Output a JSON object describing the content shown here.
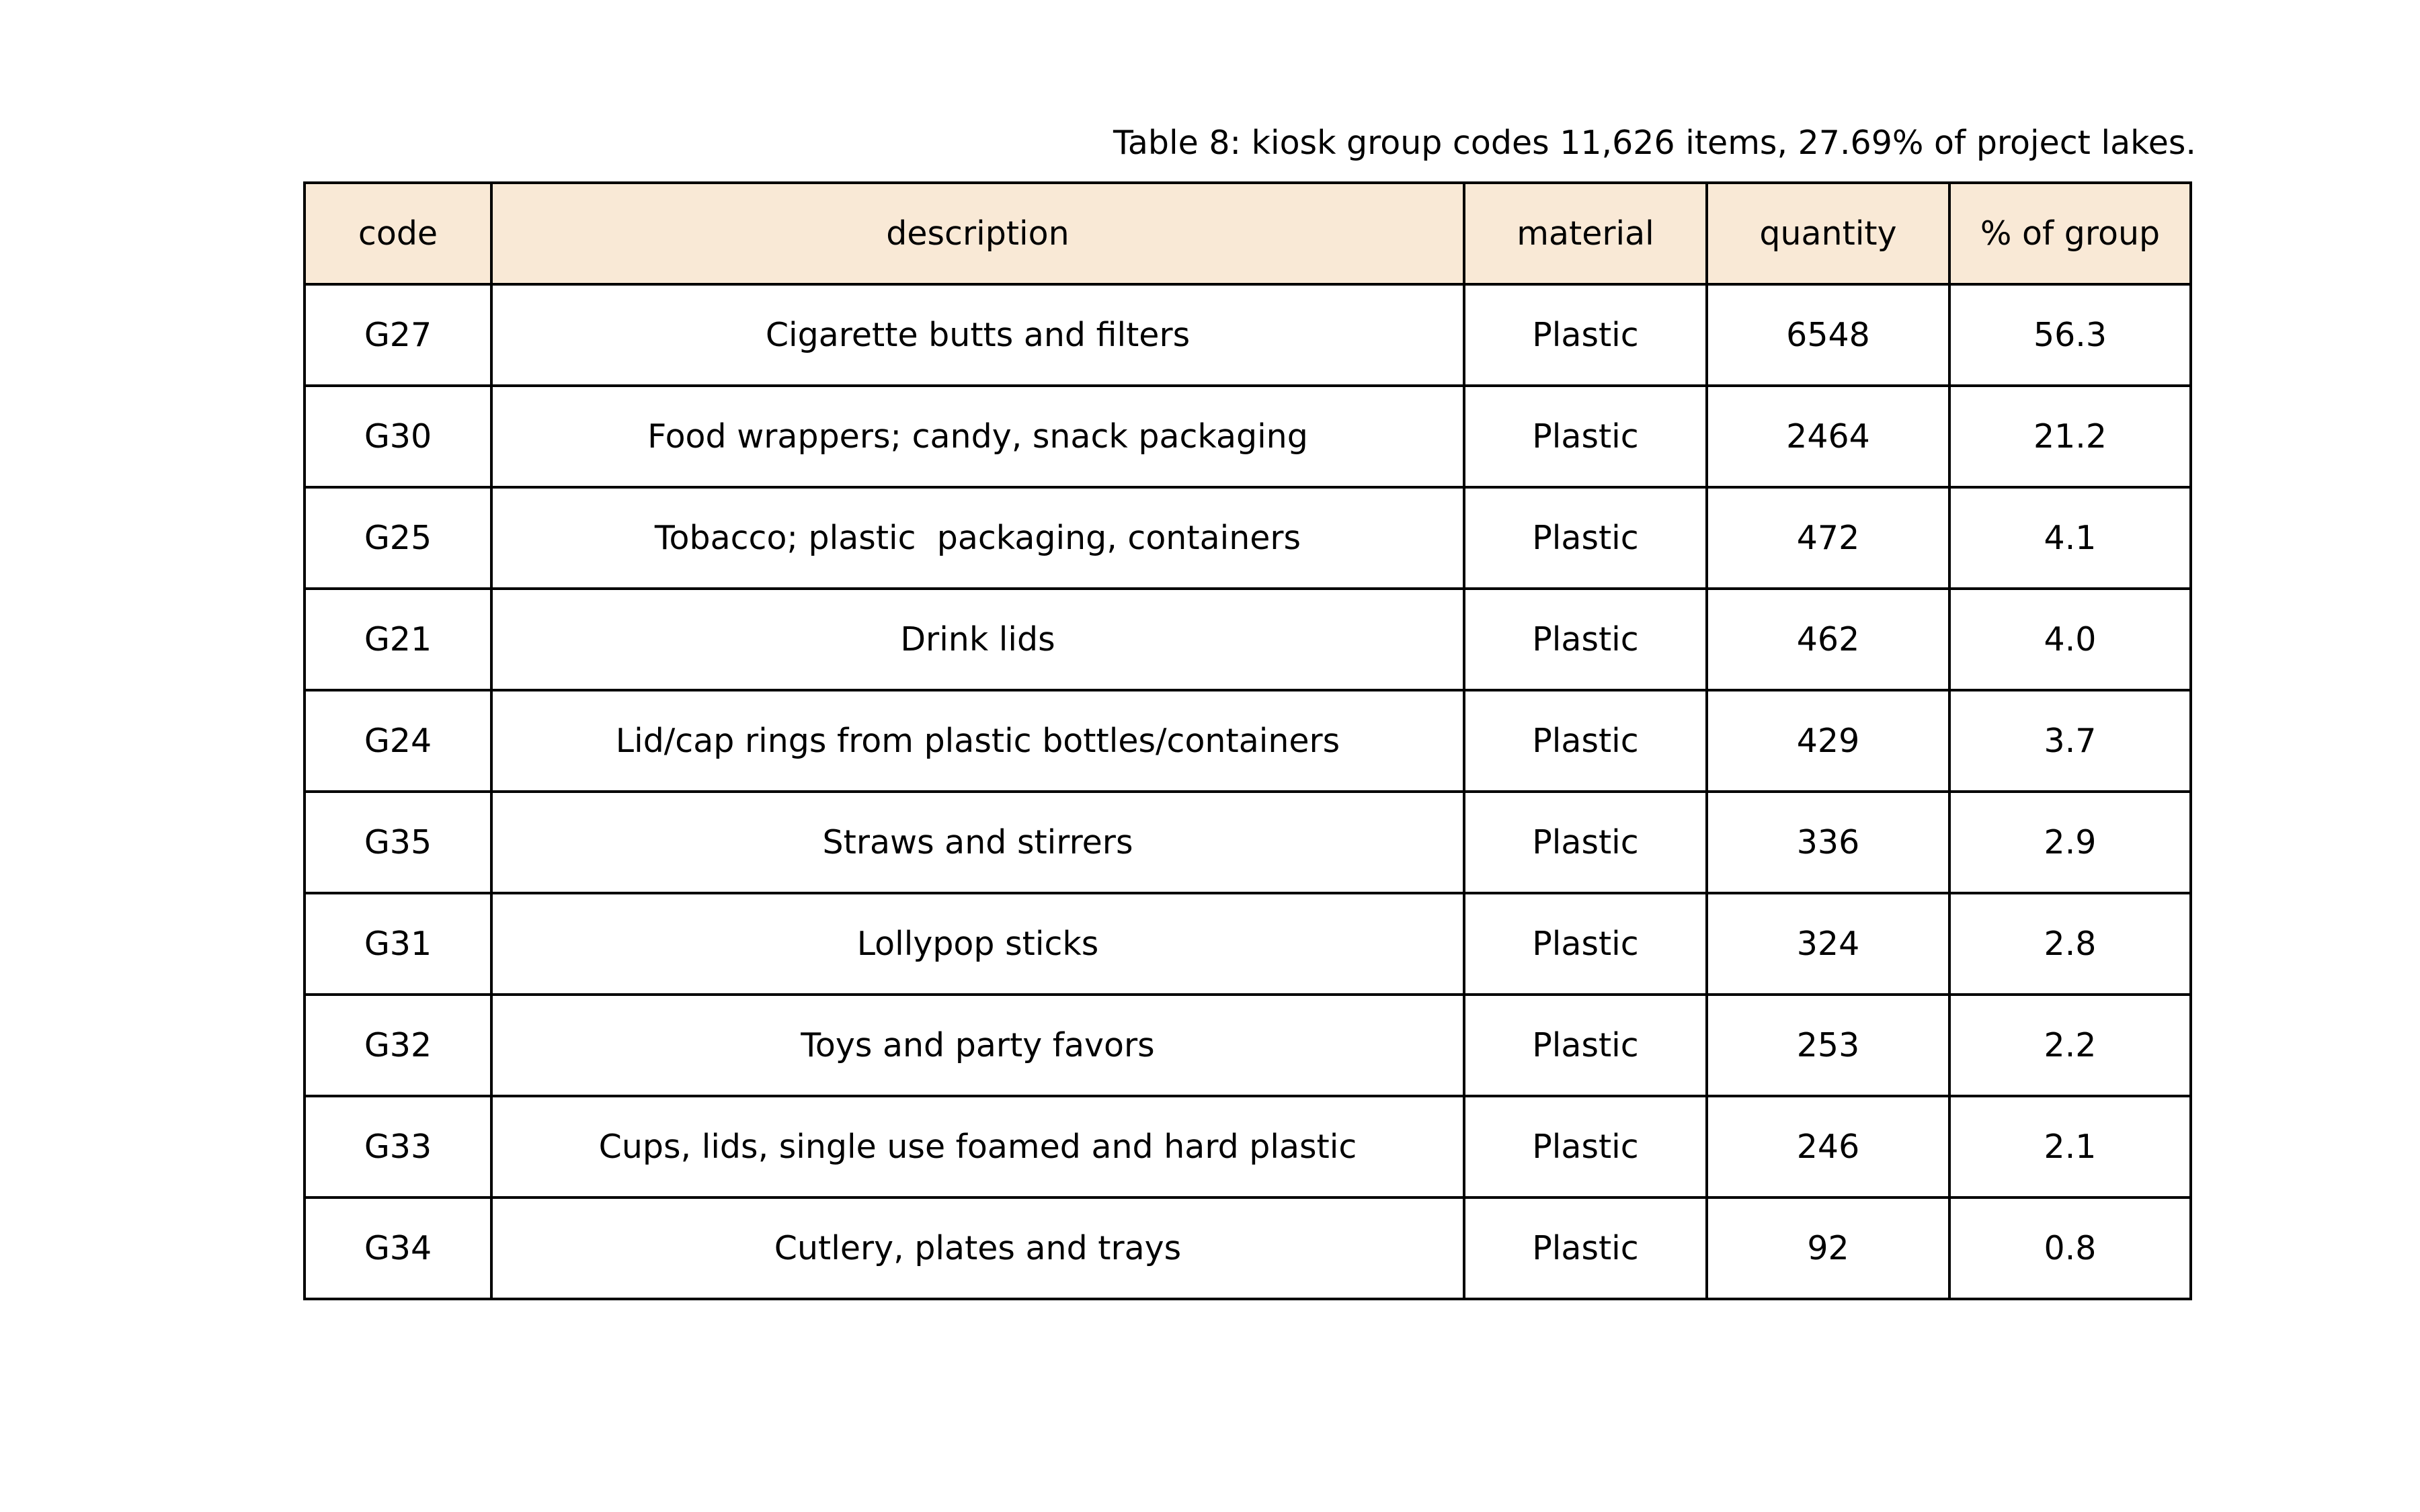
{
  "caption": "Table 8: kiosk group codes 11,626 items, 27.69% of project lakes.",
  "colors": {
    "header_background": "#f9e9d6",
    "border": "#000000",
    "text": "#000000"
  },
  "chart_data": {
    "type": "table",
    "title": "Table 8: kiosk group codes 11,626 items, 27.69% of project lakes.",
    "columns": [
      "code",
      "description",
      "material",
      "quantity",
      "% of group"
    ],
    "rows": [
      [
        "G27",
        "Cigarette butts and filters",
        "Plastic",
        "6548",
        "56.3"
      ],
      [
        "G30",
        "Food wrappers; candy, snack packaging",
        "Plastic",
        "2464",
        "21.2"
      ],
      [
        "G25",
        "Tobacco; plastic  packaging, containers",
        "Plastic",
        "472",
        "4.1"
      ],
      [
        "G21",
        "Drink lids",
        "Plastic",
        "462",
        "4.0"
      ],
      [
        "G24",
        "Lid/cap rings from plastic bottles/containers",
        "Plastic",
        "429",
        "3.7"
      ],
      [
        "G35",
        "Straws and stirrers",
        "Plastic",
        "336",
        "2.9"
      ],
      [
        "G31",
        "Lollypop sticks",
        "Plastic",
        "324",
        "2.8"
      ],
      [
        "G32",
        "Toys and party favors",
        "Plastic",
        "253",
        "2.2"
      ],
      [
        "G33",
        "Cups, lids, single use foamed and hard plastic",
        "Plastic",
        "246",
        "2.1"
      ],
      [
        "G34",
        "Cutlery, plates and trays",
        "Plastic",
        "92",
        "0.8"
      ]
    ]
  }
}
